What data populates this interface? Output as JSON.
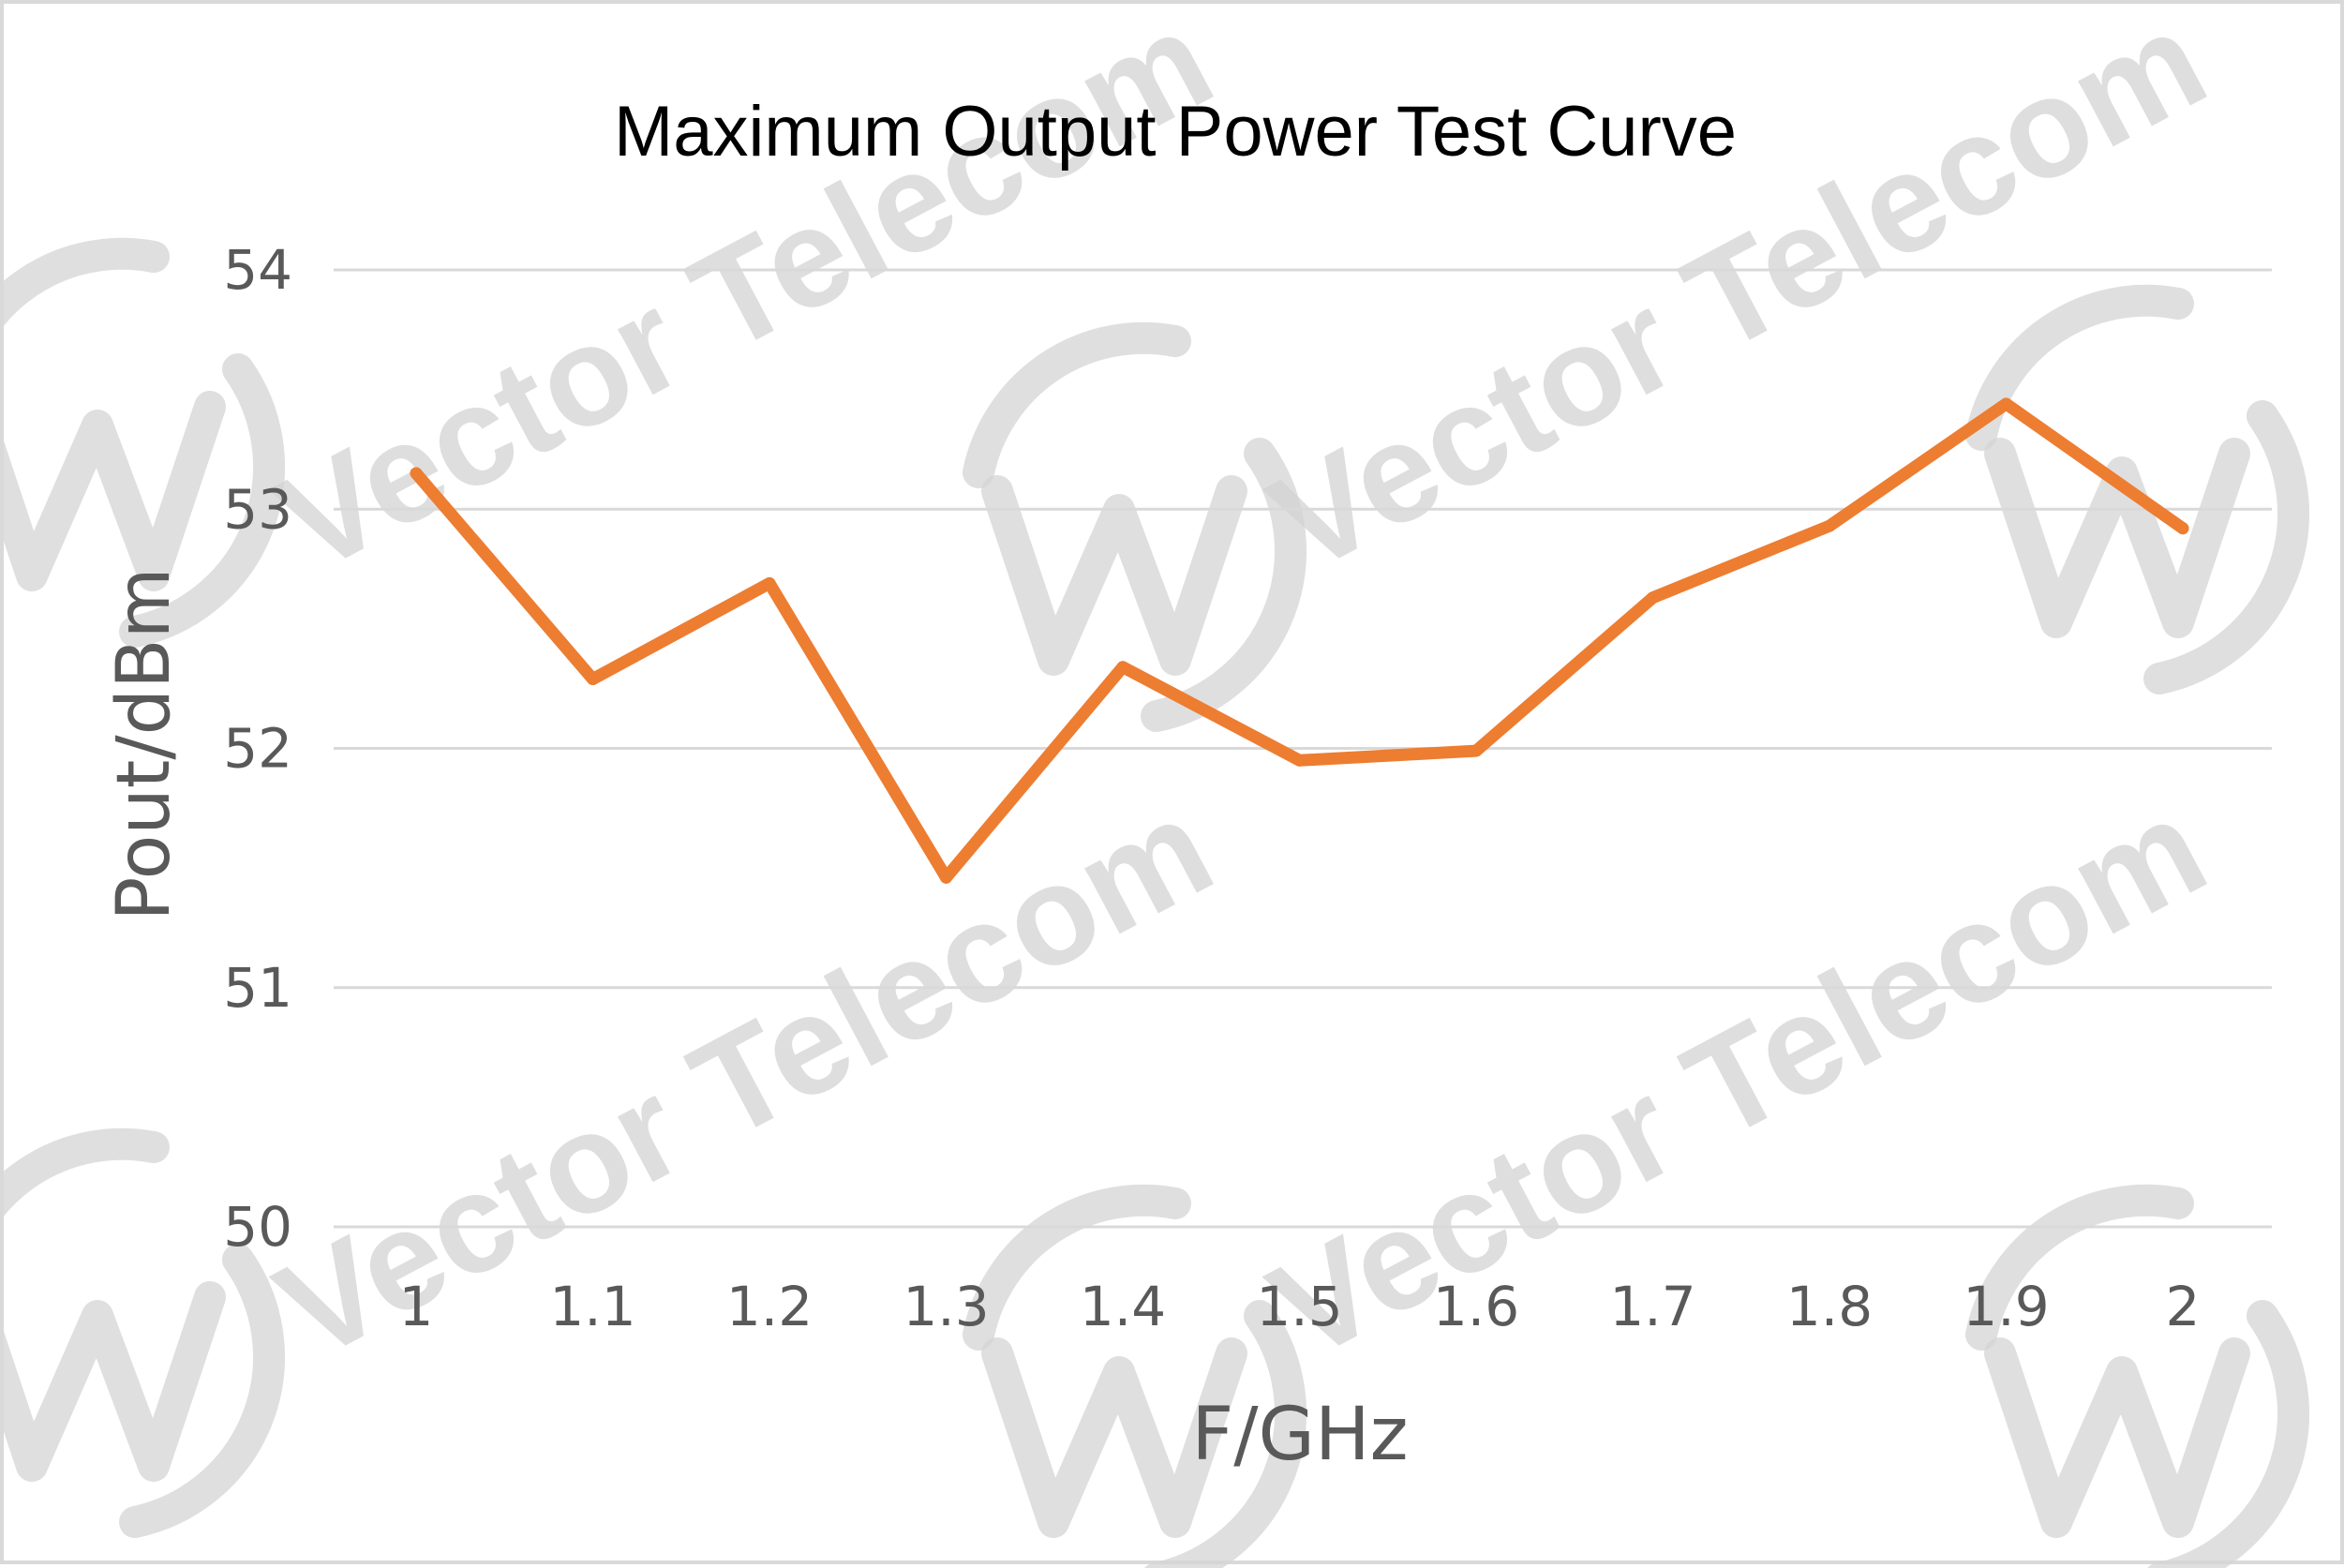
{
  "chart_data": {
    "type": "line",
    "title": "Maximum Output Power Test Curve",
    "xlabel": "F/GHz",
    "ylabel": "Pout/dBm",
    "x": [
      "1",
      "1.1",
      "1.2",
      "1.3",
      "1.4",
      "1.5",
      "1.6",
      "1.7",
      "1.8",
      "1.9",
      "2"
    ],
    "series": [
      {
        "values": [
          53.15,
          52.29,
          52.69,
          51.46,
          52.34,
          51.95,
          51.99,
          52.63,
          52.93,
          53.44,
          52.92
        ]
      }
    ],
    "ylim": [
      50,
      54
    ],
    "yticks": [
      "50",
      "51",
      "52",
      "53",
      "54"
    ],
    "grid": true,
    "legend": "none",
    "line_color": "#ed7d31",
    "grid_color": "#d9d9d9"
  },
  "watermark": {
    "text": "Vector Telecom",
    "icon": "vector-telecom-logo-icon"
  }
}
